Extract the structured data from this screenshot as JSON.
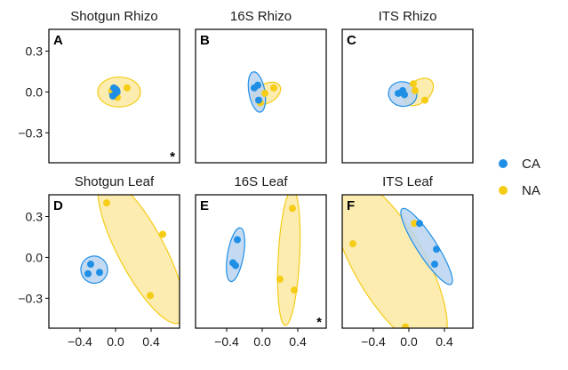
{
  "chart_data": {
    "type": "scatter",
    "legend": {
      "placement": "right",
      "entries": [
        {
          "name": "CA",
          "color": "#1f8fe6"
        },
        {
          "name": "NA",
          "color": "#f5cc16"
        }
      ]
    },
    "ellipse_fill": {
      "CA": "#b8d3f0",
      "NA": "#fbe9a2"
    },
    "ellipse_stroke": {
      "CA": "#1f8fe6",
      "NA": "#f5cc16"
    },
    "xlim": [
      -0.75,
      0.72
    ],
    "ylim": [
      -0.52,
      0.46
    ],
    "xticks": [
      -0.4,
      0.0,
      0.4
    ],
    "xtick_labels": [
      "−0.4",
      "0.0",
      "0.4"
    ],
    "yticks": [
      0.3,
      0.0,
      -0.3
    ],
    "ytick_labels": [
      "0.3",
      "0.0",
      "−0.3"
    ],
    "panels": [
      {
        "letter": "A",
        "title": "Shotgun Rhizo",
        "annotation": "*",
        "series": [
          {
            "name": "CA",
            "points": [
              [
                -0.02,
                0.03
              ],
              [
                0.0,
                -0.01
              ],
              [
                -0.03,
                -0.03
              ],
              [
                0.01,
                0.01
              ]
            ],
            "ellipse": {
              "cx": -0.01,
              "cy": 0.0,
              "rx": 0.06,
              "ry": 0.045,
              "angle": 0
            }
          },
          {
            "name": "NA",
            "points": [
              [
                0.13,
                0.03
              ],
              [
                0.02,
                -0.04
              ],
              [
                -0.04,
                0.01
              ]
            ],
            "ellipse": {
              "cx": 0.04,
              "cy": 0.0,
              "rx": 0.24,
              "ry": 0.11,
              "angle": 0
            }
          }
        ]
      },
      {
        "letter": "B",
        "title": "16S Rhizo",
        "annotation": "",
        "series": [
          {
            "name": "CA",
            "points": [
              [
                -0.05,
                0.05
              ],
              [
                -0.09,
                0.03
              ],
              [
                -0.04,
                -0.06
              ]
            ],
            "ellipse": {
              "cx": -0.06,
              "cy": 0.0,
              "rx": 0.09,
              "ry": 0.15,
              "angle": -10
            }
          },
          {
            "name": "NA",
            "points": [
              [
                0.13,
                0.03
              ],
              [
                0.03,
                -0.01
              ],
              [
                -0.02,
                -0.08
              ]
            ],
            "ellipse": {
              "cx": 0.05,
              "cy": -0.01,
              "rx": 0.17,
              "ry": 0.07,
              "angle": -30
            }
          }
        ]
      },
      {
        "letter": "C",
        "title": "ITS Rhizo",
        "annotation": "",
        "series": [
          {
            "name": "CA",
            "points": [
              [
                -0.12,
                -0.01
              ],
              [
                -0.05,
                -0.02
              ],
              [
                -0.07,
                0.01
              ]
            ],
            "ellipse": {
              "cx": -0.07,
              "cy": -0.015,
              "rx": 0.16,
              "ry": 0.09,
              "angle": 10
            }
          },
          {
            "name": "NA",
            "points": [
              [
                0.05,
                0.06
              ],
              [
                0.18,
                -0.06
              ],
              [
                0.07,
                0.01
              ]
            ],
            "ellipse": {
              "cx": 0.11,
              "cy": 0.0,
              "rx": 0.19,
              "ry": 0.08,
              "angle": -40
            }
          }
        ]
      },
      {
        "letter": "D",
        "title": "Shotgun Leaf",
        "annotation": "",
        "series": [
          {
            "name": "CA",
            "points": [
              [
                -0.28,
                -0.05
              ],
              [
                -0.31,
                -0.12
              ],
              [
                -0.18,
                -0.11
              ]
            ],
            "ellipse": {
              "cx": -0.24,
              "cy": -0.09,
              "rx": 0.15,
              "ry": 0.1,
              "angle": -15
            }
          },
          {
            "name": "NA",
            "points": [
              [
                -0.1,
                0.4
              ],
              [
                0.53,
                0.17
              ],
              [
                0.39,
                -0.28
              ]
            ],
            "ellipse": {
              "cx": 0.29,
              "cy": 0.05,
              "rx": 0.26,
              "ry": 0.6,
              "angle": -28
            }
          }
        ]
      },
      {
        "letter": "E",
        "title": "16S Leaf",
        "annotation": "*",
        "series": [
          {
            "name": "CA",
            "points": [
              [
                -0.28,
                0.13
              ],
              [
                -0.33,
                -0.04
              ],
              [
                -0.3,
                -0.06
              ]
            ],
            "ellipse": {
              "cx": -0.3,
              "cy": 0.02,
              "rx": 0.09,
              "ry": 0.2,
              "angle": 10
            }
          },
          {
            "name": "NA",
            "points": [
              [
                0.34,
                0.36
              ],
              [
                0.2,
                -0.16
              ],
              [
                0.36,
                -0.24
              ]
            ],
            "ellipse": {
              "cx": 0.3,
              "cy": 0.0,
              "rx": 0.12,
              "ry": 0.5,
              "angle": 3
            }
          }
        ]
      },
      {
        "letter": "F",
        "title": "ITS Leaf",
        "annotation": "",
        "series": [
          {
            "name": "CA",
            "points": [
              [
                0.12,
                0.25
              ],
              [
                0.31,
                0.06
              ],
              [
                0.29,
                -0.05
              ]
            ],
            "ellipse": {
              "cx": 0.2,
              "cy": 0.08,
              "rx": 0.11,
              "ry": 0.33,
              "angle": -33
            }
          },
          {
            "name": "NA",
            "points": [
              [
                -0.63,
                0.1
              ],
              [
                0.06,
                0.25
              ],
              [
                -0.04,
                -0.51
              ]
            ],
            "ellipse": {
              "cx": -0.22,
              "cy": -0.04,
              "rx": 0.4,
              "ry": 0.72,
              "angle": -30
            }
          }
        ]
      }
    ]
  }
}
